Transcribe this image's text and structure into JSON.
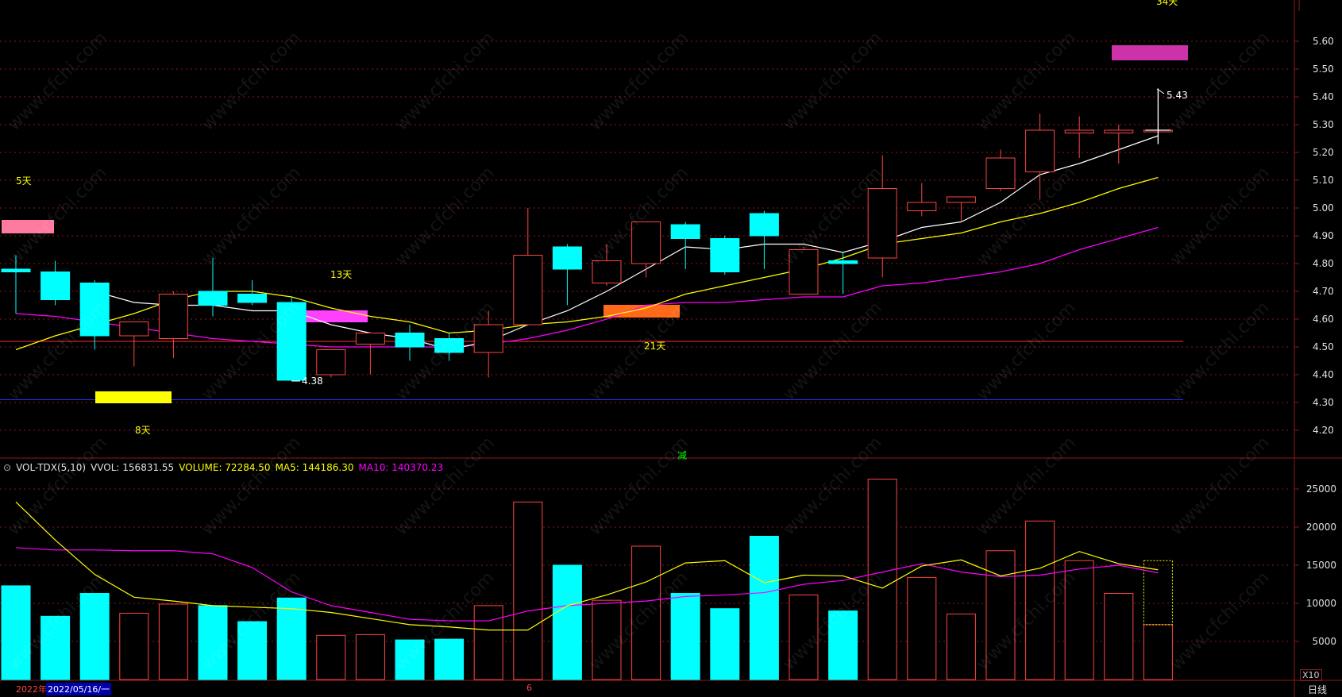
{
  "colors": {
    "up": "#ff4444",
    "down": "#00ffff",
    "ma5": "#ffffff",
    "ma10": "#ffff00",
    "ma20": "#ff00ff",
    "vol_ma5": "#ffff00",
    "vol_ma10": "#ff00ff",
    "grid": "#8b1a1a",
    "text_yellow": "#ffff00",
    "text_magenta": "#ff00ff"
  },
  "price_panel": {
    "cycle_labels": [
      "5天",
      "8天",
      "13天",
      "21天",
      "34天"
    ],
    "low_annotation": "4.38",
    "high_annotation": "5.43",
    "center_marker": "减"
  },
  "indicator": {
    "name": "VOL-TDX(5,10)",
    "vvol": "VVOL: 156831.55",
    "volume": "VOLUME: 72284.50",
    "ma5": "MA5: 144186.30",
    "ma10": "MA10: 140370.23"
  },
  "footer": {
    "year": "2022年",
    "date": "2022/05/16/一",
    "month_mark": "6",
    "period": "日线",
    "unit": "X10"
  },
  "chart_data": [
    {
      "type": "candlestick",
      "ylim": [
        4.13,
        5.72
      ],
      "yticks": [
        "5.60",
        "5.50",
        "5.40",
        "5.30",
        "5.20",
        "5.10",
        "5.00",
        "4.90",
        "4.80",
        "4.70",
        "4.60",
        "4.50",
        "4.40",
        "4.30",
        "4.20"
      ],
      "candles": [
        {
          "o": 4.78,
          "h": 4.83,
          "l": 4.62,
          "c": 4.77
        },
        {
          "o": 4.77,
          "h": 4.81,
          "l": 4.65,
          "c": 4.67
        },
        {
          "o": 4.73,
          "h": 4.74,
          "l": 4.49,
          "c": 4.54
        },
        {
          "o": 4.54,
          "h": 4.59,
          "l": 4.43,
          "c": 4.59
        },
        {
          "o": 4.53,
          "h": 4.7,
          "l": 4.46,
          "c": 4.69
        },
        {
          "o": 4.7,
          "h": 4.82,
          "l": 4.61,
          "c": 4.65
        },
        {
          "o": 4.69,
          "h": 4.74,
          "l": 4.65,
          "c": 4.66
        },
        {
          "o": 4.66,
          "h": 4.68,
          "l": 4.38,
          "c": 4.38
        },
        {
          "o": 4.4,
          "h": 4.49,
          "l": 4.39,
          "c": 4.49
        },
        {
          "o": 4.51,
          "h": 4.55,
          "l": 4.4,
          "c": 4.55
        },
        {
          "o": 4.55,
          "h": 4.58,
          "l": 4.45,
          "c": 4.5
        },
        {
          "o": 4.53,
          "h": 4.55,
          "l": 4.45,
          "c": 4.48
        },
        {
          "o": 4.48,
          "h": 4.63,
          "l": 4.39,
          "c": 4.58
        },
        {
          "o": 4.58,
          "h": 5.0,
          "l": 4.58,
          "c": 4.83
        },
        {
          "o": 4.86,
          "h": 4.87,
          "l": 4.65,
          "c": 4.78
        },
        {
          "o": 4.73,
          "h": 4.87,
          "l": 4.72,
          "c": 4.81
        },
        {
          "o": 4.8,
          "h": 4.95,
          "l": 4.75,
          "c": 4.95
        },
        {
          "o": 4.94,
          "h": 4.95,
          "l": 4.78,
          "c": 4.89
        },
        {
          "o": 4.89,
          "h": 4.9,
          "l": 4.76,
          "c": 4.77
        },
        {
          "o": 4.98,
          "h": 4.99,
          "l": 4.78,
          "c": 4.9
        },
        {
          "o": 4.69,
          "h": 4.86,
          "l": 4.69,
          "c": 4.85
        },
        {
          "o": 4.81,
          "h": 4.84,
          "l": 4.69,
          "c": 4.8
        },
        {
          "o": 4.82,
          "h": 5.19,
          "l": 4.75,
          "c": 5.07
        },
        {
          "o": 4.99,
          "h": 5.09,
          "l": 4.97,
          "c": 5.02
        },
        {
          "o": 5.02,
          "h": 5.04,
          "l": 4.95,
          "c": 5.04
        },
        {
          "o": 5.07,
          "h": 5.21,
          "l": 5.06,
          "c": 5.18
        },
        {
          "o": 5.13,
          "h": 5.34,
          "l": 5.03,
          "c": 5.28
        },
        {
          "o": 5.27,
          "h": 5.33,
          "l": 5.18,
          "c": 5.28
        },
        {
          "o": 5.27,
          "h": 5.3,
          "l": 5.16,
          "c": 5.28
        },
        {
          "o": 5.28,
          "h": 5.43,
          "l": 5.23,
          "c": 5.28
        }
      ],
      "ma5": [
        null,
        null,
        4.7,
        4.66,
        4.65,
        4.65,
        4.63,
        4.63,
        4.58,
        4.55,
        4.53,
        4.49,
        4.52,
        4.58,
        4.63,
        4.7,
        4.78,
        4.86,
        4.85,
        4.87,
        4.87,
        4.84,
        4.88,
        4.93,
        4.95,
        5.02,
        5.12,
        5.16,
        5.21,
        5.26
      ],
      "ma10": [
        4.49,
        4.54,
        4.58,
        4.62,
        4.67,
        4.7,
        4.7,
        4.68,
        4.64,
        4.61,
        4.59,
        4.55,
        4.56,
        4.58,
        4.59,
        4.61,
        4.64,
        4.69,
        4.72,
        4.75,
        4.78,
        4.82,
        4.87,
        4.89,
        4.91,
        4.95,
        4.98,
        5.02,
        5.07,
        5.11
      ],
      "ma20": [
        4.62,
        4.61,
        4.59,
        4.57,
        4.55,
        4.53,
        4.52,
        4.51,
        4.5,
        4.5,
        4.5,
        4.5,
        4.51,
        4.53,
        4.56,
        4.6,
        4.65,
        4.66,
        4.66,
        4.67,
        4.68,
        4.68,
        4.72,
        4.73,
        4.75,
        4.77,
        4.8,
        4.85,
        4.89,
        4.93
      ],
      "hlines": [
        4.52,
        4.31
      ]
    },
    {
      "type": "bar",
      "ylabel": "X10",
      "ylim": [
        0,
        28000
      ],
      "yticks": [
        "25000",
        "20000",
        "15000",
        "10000",
        "5000"
      ],
      "values": [
        12300,
        8300,
        11300,
        8700,
        9900,
        9700,
        7600,
        10700,
        5800,
        5900,
        5200,
        5300,
        9700,
        23300,
        15000,
        10400,
        17500,
        11300,
        9300,
        18800,
        11100,
        9000,
        26300,
        13400,
        8600,
        16900,
        20800,
        15600,
        11300,
        7200
      ],
      "ma5": [
        23300,
        18300,
        13800,
        10800,
        10300,
        9700,
        9500,
        9300,
        8800,
        8000,
        7200,
        6900,
        6500,
        6500,
        9700,
        11100,
        12800,
        15300,
        15600,
        12700,
        13700,
        13600,
        12000,
        14900,
        15700,
        13600,
        14600,
        16800,
        15200,
        14400
      ],
      "ma10": [
        17300,
        17000,
        17000,
        16900,
        16900,
        16500,
        14700,
        11500,
        9700,
        8800,
        7900,
        7700,
        7700,
        9000,
        9700,
        10000,
        10300,
        10900,
        11100,
        11400,
        12500,
        13000,
        14100,
        15200,
        14100,
        13500,
        13700,
        14500,
        15000,
        14000
      ]
    }
  ]
}
